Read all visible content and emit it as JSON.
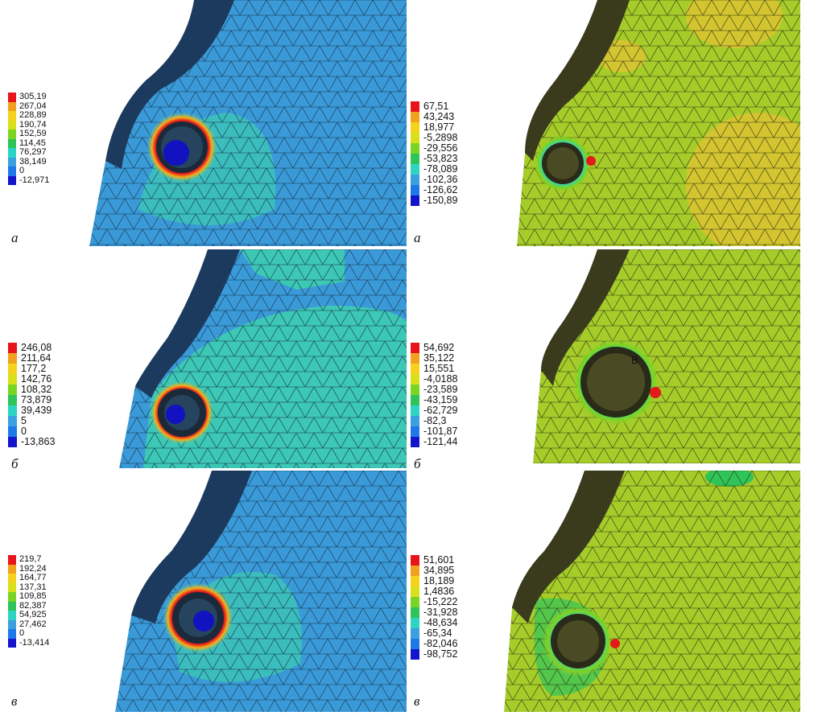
{
  "panels": [
    {
      "label": "а",
      "legend": [
        "305,19",
        "267,04",
        "228,89",
        "190,74",
        "152,59",
        "114,45",
        "76,297",
        "38,149",
        "0",
        "-12,971"
      ],
      "colors": [
        "#e8141b",
        "#f0a21e",
        "#f4d21e",
        "#d8e01c",
        "#7ad424",
        "#2fc45a",
        "#2dd4c4",
        "#3aa0e0",
        "#1f78e8",
        "#1414cc"
      ]
    },
    {
      "label": "а",
      "legend": [
        "67,51",
        "43,243",
        "18,977",
        "-5,2898",
        "-29,556",
        "-53,823",
        "-78,089",
        "-102,36",
        "-126,62",
        "-150,89"
      ],
      "colors": [
        "#e8141b",
        "#f0a21e",
        "#f4d21e",
        "#d8e01c",
        "#7ad424",
        "#2fc45a",
        "#2dd4c4",
        "#3aa0e0",
        "#1f78e8",
        "#1414cc"
      ]
    },
    {
      "label": "б",
      "legend": [
        "246,08",
        "211,64",
        "177,2",
        "142,76",
        "108,32",
        "73,879",
        "39,439",
        "5",
        "0",
        "-13,863"
      ],
      "colors": [
        "#e8141b",
        "#f0a21e",
        "#f4d21e",
        "#d8e01c",
        "#7ad424",
        "#2fc45a",
        "#2dd4c4",
        "#3aa0e0",
        "#1f78e8",
        "#1414cc"
      ]
    },
    {
      "label": "б",
      "legend": [
        "54,692",
        "35,122",
        "15,551",
        "-4,0188",
        "-23,589",
        "-43,159",
        "-62,729",
        "-82,3",
        "-101,87",
        "-121,44"
      ],
      "colors": [
        "#e8141b",
        "#f0a21e",
        "#f4d21e",
        "#d8e01c",
        "#7ad424",
        "#2fc45a",
        "#2dd4c4",
        "#3aa0e0",
        "#1f78e8",
        "#1414cc"
      ],
      "marker": "B"
    },
    {
      "label": "в",
      "legend": [
        "219,7",
        "192,24",
        "164,77",
        "137,31",
        "109,85",
        "82,387",
        "54,925",
        "27,462",
        "0",
        "-13,414"
      ],
      "colors": [
        "#e8141b",
        "#f0a21e",
        "#f4d21e",
        "#d8e01c",
        "#7ad424",
        "#2fc45a",
        "#2dd4c4",
        "#3aa0e0",
        "#1f78e8",
        "#1414cc"
      ]
    },
    {
      "label": "в",
      "legend": [
        "51,601",
        "34,895",
        "18,189",
        "1,4836",
        "-15,222",
        "-31,928",
        "-48,634",
        "-65,34",
        "-82,046",
        "-98,752"
      ],
      "colors": [
        "#e8141b",
        "#f0a21e",
        "#f4d21e",
        "#d8e01c",
        "#7ad424",
        "#2fc45a",
        "#2dd4c4",
        "#3aa0e0",
        "#1f78e8",
        "#1414cc"
      ]
    }
  ],
  "field_colors": {
    "left_base": "#3a9ad8",
    "left_zone": "#3cc8b4",
    "left_dark": "#1c3a5e",
    "right_base": "#a6cc2a",
    "right_zone": "#d4c430",
    "right_dark": "#3a3a1c"
  }
}
